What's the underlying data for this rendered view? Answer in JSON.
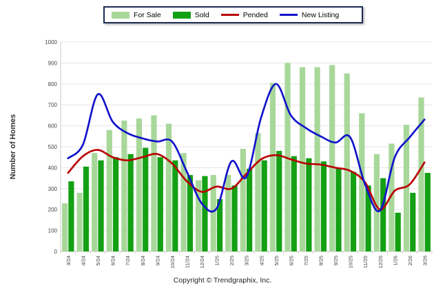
{
  "chart_data": {
    "type": "combo",
    "title": "",
    "xlabel": "",
    "ylabel": "Number of Homes",
    "ylim": [
      0,
      1000
    ],
    "ytick_step": 100,
    "grid": true,
    "legend_position": "top",
    "categories": [
      "3/24",
      "4/24",
      "5/24",
      "6/24",
      "7/24",
      "8/24",
      "9/24",
      "10/24",
      "11/24",
      "12/24",
      "1/25",
      "2/25",
      "3/25",
      "4/25",
      "5/25",
      "6/25",
      "7/25",
      "8/25",
      "9/25",
      "10/25",
      "11/25",
      "12/25",
      "1/26",
      "2/26",
      "3/26"
    ],
    "series": [
      {
        "name": "For Sale",
        "kind": "bar",
        "color": "#a8d79a",
        "values": [
          230,
          280,
          470,
          580,
          625,
          635,
          650,
          610,
          470,
          340,
          365,
          365,
          490,
          565,
          805,
          900,
          880,
          880,
          890,
          850,
          660,
          465,
          515,
          605,
          735
        ]
      },
      {
        "name": "Sold",
        "kind": "bar",
        "color": "#14a014",
        "values": [
          335,
          405,
          435,
          450,
          465,
          495,
          450,
          435,
          365,
          360,
          250,
          315,
          395,
          435,
          480,
          455,
          445,
          430,
          400,
          380,
          315,
          350,
          185,
          280,
          375
        ]
      },
      {
        "name": "Pended",
        "kind": "line",
        "color": "#b80000",
        "values": [
          375,
          455,
          485,
          450,
          435,
          450,
          465,
          420,
          335,
          285,
          310,
          300,
          370,
          440,
          460,
          440,
          420,
          415,
          400,
          385,
          330,
          200,
          290,
          320,
          425
        ]
      },
      {
        "name": "New Listing",
        "kind": "line",
        "color": "#1212cc",
        "values": [
          445,
          510,
          750,
          620,
          565,
          540,
          525,
          525,
          380,
          230,
          205,
          430,
          355,
          640,
          800,
          650,
          590,
          550,
          520,
          545,
          320,
          195,
          450,
          545,
          630
        ]
      }
    ]
  },
  "footer": {
    "copyright": "Copyright © Trendgraphix, Inc."
  },
  "style": {
    "gridline_color": "#e4e4e4",
    "axis_color": "#c8c8c8",
    "tick_text_color": "#444",
    "ylabel_color": "#333"
  }
}
